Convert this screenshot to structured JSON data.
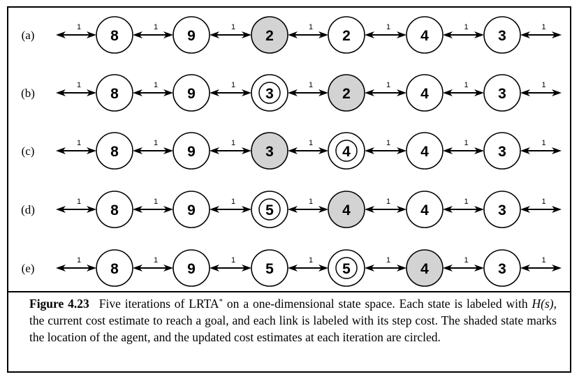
{
  "rows": [
    {
      "label": "(a)",
      "nodes": [
        {
          "value": "8",
          "shaded": false,
          "circled": false
        },
        {
          "value": "9",
          "shaded": false,
          "circled": false
        },
        {
          "value": "2",
          "shaded": true,
          "circled": false
        },
        {
          "value": "2",
          "shaded": false,
          "circled": false
        },
        {
          "value": "4",
          "shaded": false,
          "circled": false
        },
        {
          "value": "3",
          "shaded": false,
          "circled": false
        }
      ]
    },
    {
      "label": "(b)",
      "nodes": [
        {
          "value": "8",
          "shaded": false,
          "circled": false
        },
        {
          "value": "9",
          "shaded": false,
          "circled": false
        },
        {
          "value": "3",
          "shaded": false,
          "circled": true
        },
        {
          "value": "2",
          "shaded": true,
          "circled": false
        },
        {
          "value": "4",
          "shaded": false,
          "circled": false
        },
        {
          "value": "3",
          "shaded": false,
          "circled": false
        }
      ]
    },
    {
      "label": "(c)",
      "nodes": [
        {
          "value": "8",
          "shaded": false,
          "circled": false
        },
        {
          "value": "9",
          "shaded": false,
          "circled": false
        },
        {
          "value": "3",
          "shaded": true,
          "circled": false
        },
        {
          "value": "4",
          "shaded": false,
          "circled": true
        },
        {
          "value": "4",
          "shaded": false,
          "circled": false
        },
        {
          "value": "3",
          "shaded": false,
          "circled": false
        }
      ]
    },
    {
      "label": "(d)",
      "nodes": [
        {
          "value": "8",
          "shaded": false,
          "circled": false
        },
        {
          "value": "9",
          "shaded": false,
          "circled": false
        },
        {
          "value": "5",
          "shaded": false,
          "circled": true
        },
        {
          "value": "4",
          "shaded": true,
          "circled": false
        },
        {
          "value": "4",
          "shaded": false,
          "circled": false
        },
        {
          "value": "3",
          "shaded": false,
          "circled": false
        }
      ]
    },
    {
      "label": "(e)",
      "nodes": [
        {
          "value": "8",
          "shaded": false,
          "circled": false
        },
        {
          "value": "9",
          "shaded": false,
          "circled": false
        },
        {
          "value": "5",
          "shaded": false,
          "circled": false
        },
        {
          "value": "5",
          "shaded": false,
          "circled": true
        },
        {
          "value": "4",
          "shaded": true,
          "circled": false
        },
        {
          "value": "3",
          "shaded": false,
          "circled": false
        }
      ]
    }
  ],
  "link_cost": "1",
  "colors": {
    "shaded_fill": "#d3d3d3",
    "ink": "#000000",
    "node_fill": "#ffffff"
  },
  "caption": {
    "figure_label": "Figure 4.23",
    "text_1": "Five iterations of LRTA",
    "star": "*",
    "text_2": " on a one-dimensional state space. Each state is labeled with ",
    "math": "H(s)",
    "text_3": ", the current cost estimate to reach a goal, and each link is labeled with its step cost. The shaded state marks the location of the agent, and the updated cost estimates at each iteration are circled."
  }
}
